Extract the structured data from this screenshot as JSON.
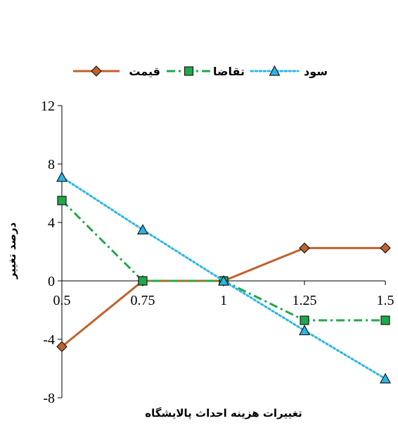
{
  "chart_data": {
    "type": "line",
    "title": "",
    "xlabel": "تغییرات هزینه احداث پالایشگاه",
    "ylabel": "درصد تغییر",
    "categories": [
      "0.5",
      "0.75",
      "1",
      "1.25",
      "1.5"
    ],
    "ylim": [
      -8,
      12
    ],
    "yticks": [
      "12",
      "8",
      "4",
      "0",
      "-4",
      "-8"
    ],
    "grid": false,
    "legend_position": "top",
    "series": [
      {
        "name": "قیمت",
        "values": [
          -4.5,
          0,
          0,
          2.25,
          2.25
        ],
        "color": "#c0622a",
        "line_style": "solid",
        "marker": "diamond",
        "marker_color": "#c0622a"
      },
      {
        "name": "تقاضا",
        "values": [
          5.5,
          0,
          0,
          -2.7,
          -2.7
        ],
        "color": "#1ea94a",
        "line_style": "dash-dot",
        "marker": "square",
        "marker_color": "#1ea94a"
      },
      {
        "name": "سود",
        "values": [
          7.1,
          3.5,
          0,
          -3.4,
          -6.7
        ],
        "color": "#29b6e8",
        "line_style": "dotted",
        "marker": "triangle",
        "marker_color": "#29b6e8"
      }
    ]
  }
}
